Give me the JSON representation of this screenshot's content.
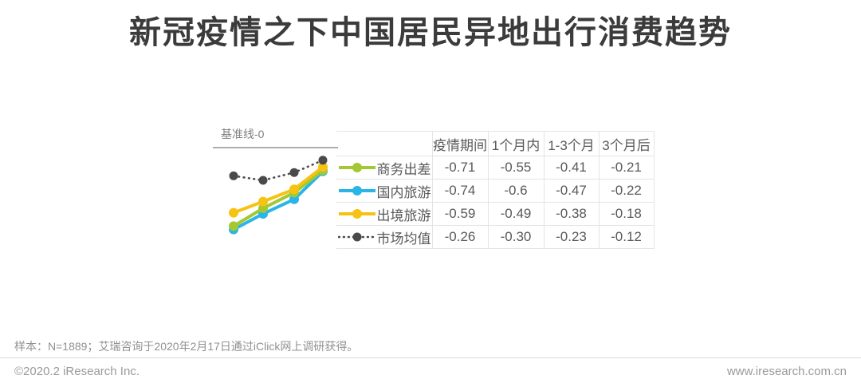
{
  "title": "新冠疫情之下中国居民异地出行消费趋势",
  "chart_data": {
    "type": "line",
    "baseline_label": "基准线-0",
    "baseline_value": 0,
    "categories": [
      "疫情期间",
      "1个月内",
      "1-3个月",
      "3个月后"
    ],
    "series": [
      {
        "name": "商务出差",
        "color": "#a3c832",
        "style": "solid",
        "values": [
          -0.71,
          -0.55,
          -0.41,
          -0.21
        ],
        "display": [
          "-0.71",
          "-0.55",
          "-0.41",
          "-0.21"
        ]
      },
      {
        "name": "国内旅游",
        "color": "#29b5e8",
        "style": "solid",
        "values": [
          -0.74,
          -0.6,
          -0.47,
          -0.22
        ],
        "display": [
          "-0.74",
          "-0.6",
          "-0.47",
          "-0.22"
        ]
      },
      {
        "name": "出境旅游",
        "color": "#f7c312",
        "style": "solid",
        "values": [
          -0.59,
          -0.49,
          -0.38,
          -0.18
        ],
        "display": [
          "-0.59",
          "-0.49",
          "-0.38",
          "-0.18"
        ]
      },
      {
        "name": "市场均值",
        "color": "#4a4a4a",
        "style": "dotted",
        "values": [
          -0.26,
          -0.3,
          -0.23,
          -0.12
        ],
        "display": [
          "-0.26",
          "-0.30",
          "-0.23",
          "-0.12"
        ]
      }
    ],
    "ylim": [
      -0.8,
      0
    ],
    "grid": false,
    "legend_position": "table-left-column"
  },
  "footer": {
    "source_note": "样本：N=1889；艾瑞咨询于2020年2月17日通过iClick网上调研获得。",
    "copyright": "©2020.2 iResearch Inc.",
    "website": "www.iresearch.com.cn"
  },
  "colors": {
    "title": "#3b3b3b",
    "table_text": "#595959",
    "table_border": "#e4e4e4",
    "baseline": "#aeaeae",
    "muted_text": "#919191"
  }
}
